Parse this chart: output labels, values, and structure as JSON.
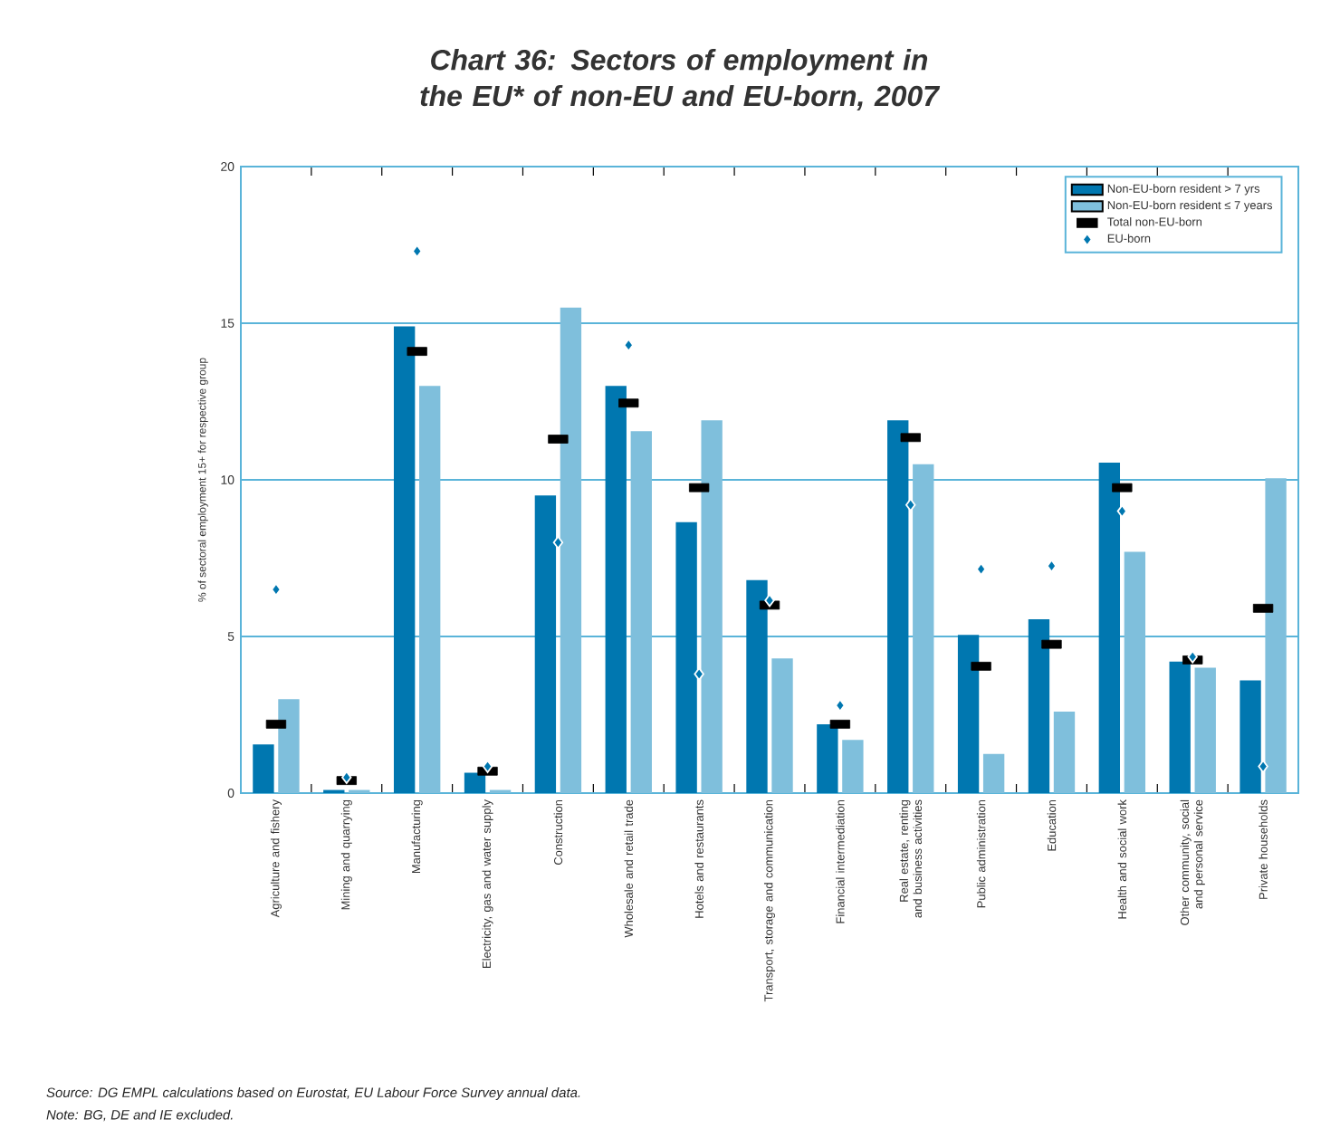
{
  "chart_data": {
    "type": "bar",
    "title": "Chart 36: Sectors of employment in the EU* of non-EU and EU-born, 2007",
    "ylabel": "% of sectoral employment 15+ for respective group",
    "categories": [
      "Agriculture and fishery",
      "Mining and quarrying",
      "Manufacturing",
      "Electricity, gas and water supply",
      "Construction",
      "Wholesale and retail trade",
      "Hotels and restaurants",
      "Transport, storage and communication",
      "Financial intermediation",
      "Real estate, renting and business activities",
      "Public administration",
      "Education",
      "Health and social work",
      "Other community, social and personal service",
      "Private households"
    ],
    "series": [
      {
        "name": "Non-EU-born resident > 7 yrs",
        "color": "#0077b0",
        "values": [
          1.55,
          0.1,
          14.9,
          0.65,
          9.5,
          13.0,
          8.65,
          6.8,
          2.2,
          11.9,
          5.05,
          5.55,
          10.55,
          4.2,
          3.6
        ]
      },
      {
        "name": "Non-EU-born resident ≤ 7 years",
        "color": "#7fbfdc",
        "values": [
          3.0,
          0.1,
          13.0,
          0.1,
          15.5,
          11.55,
          11.9,
          4.3,
          1.7,
          10.5,
          1.25,
          2.6,
          7.7,
          4.0,
          10.05
        ]
      },
      {
        "name": "Total non-EU-born",
        "type": "scatter",
        "marker": "square",
        "color": "#000000",
        "values": [
          2.2,
          0.4,
          14.1,
          0.7,
          11.3,
          12.45,
          9.75,
          6.0,
          2.2,
          11.35,
          4.05,
          4.75,
          9.75,
          4.25,
          5.9
        ]
      },
      {
        "name": "EU-born",
        "type": "scatter",
        "marker": "diamond",
        "color": "#0077b0",
        "values": [
          6.5,
          0.5,
          17.3,
          0.85,
          8.0,
          14.3,
          3.8,
          6.15,
          2.8,
          9.2,
          7.15,
          7.25,
          9.0,
          4.35,
          0.85
        ]
      }
    ],
    "ylim": [
      0,
      20
    ],
    "yticks": [
      0,
      5,
      10,
      15,
      20
    ],
    "grid": "y",
    "legend": "top right",
    "annotations": [
      "Source: DG EMPL calculations based on Eurostat, EU Labour Force Survey annual data.",
      "Note: BG, DE and IE excluded."
    ]
  }
}
